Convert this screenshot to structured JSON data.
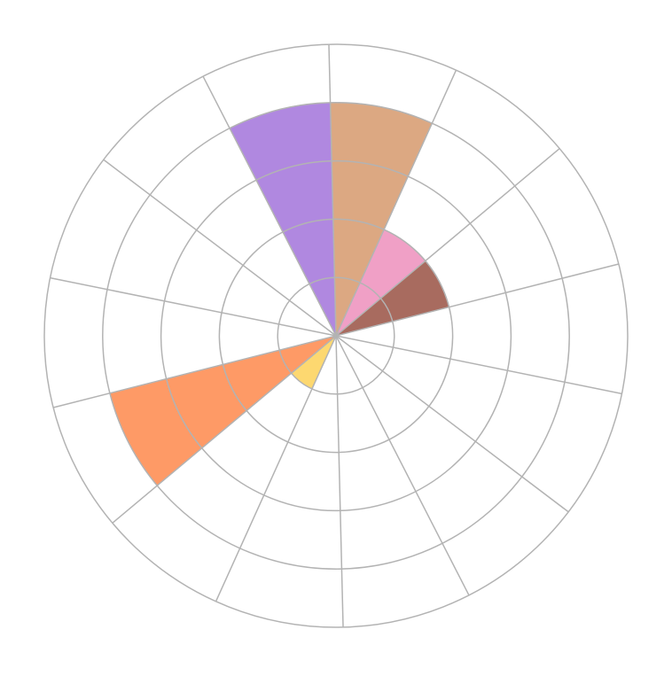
{
  "chart_data": {
    "type": "polar-bar",
    "categories": [
      null,
      null,
      null,
      null,
      null,
      null,
      null,
      null,
      null,
      null,
      null,
      null,
      null,
      null
    ],
    "values": [
      4,
      2,
      2,
      0,
      0,
      0,
      0,
      0,
      1,
      4,
      0,
      0,
      0,
      4
    ],
    "colors": [
      "#dca882",
      "#f0a0c6",
      "#a86b5f",
      "#8fc9a8",
      "#8db6e0",
      "#c4c4c4",
      "#b8e07a",
      "#f08080",
      "#fdd870",
      "#fe9a66",
      "#7fd0d8",
      "#e0c080",
      "#a0a0e0",
      "#b088e0"
    ],
    "rlim": [
      0,
      5
    ],
    "rticks": [
      1,
      2,
      3,
      4,
      5
    ],
    "grid": true
  }
}
